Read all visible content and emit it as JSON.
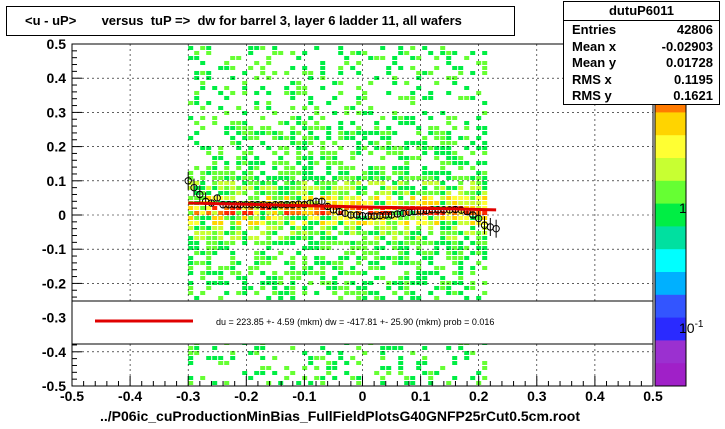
{
  "title": "<u - uP>       versus  tuP =>  dw for barrel 3, layer 6 ladder 11, all wafers",
  "footer": "../P06ic_cuProductionMinBias_FullFieldPlotsG40GNFP25rCut0.5cm.root",
  "stats": {
    "name": "dutuP6011",
    "rows": [
      {
        "label": "Entries",
        "value": "42806"
      },
      {
        "label": "Mean x",
        "value": "-0.02903"
      },
      {
        "label": "Mean y",
        "value": "0.01728"
      },
      {
        "label": "RMS x",
        "value": "0.1195"
      },
      {
        "label": "RMS y",
        "value": "0.1621"
      }
    ]
  },
  "legend": {
    "text": "du =  223.85 +-  4.59 (mkm) dw = -417.81 +- 25.90 (mkm) prob = 0.016",
    "line_color": "#e00000"
  },
  "colorbar": {
    "labels": [
      "1",
      "10-1"
    ],
    "colors": [
      "#d4145a",
      "#ff2a00",
      "#ff7a00",
      "#ffd400",
      "#ffff33",
      "#c8ff32",
      "#66ff33",
      "#00ee44",
      "#00e0a0",
      "#00ffff",
      "#00b0ff",
      "#3355ff",
      "#2a2aff",
      "#9b30d0",
      "#a020c8"
    ]
  },
  "chart_data": {
    "type": "heatmap",
    "title": "<u - uP>       versus  tuP =>  dw for barrel 3, layer 6 ladder 11, all wafers",
    "xlabel": "../P06ic_cuProductionMinBias_FullFieldPlotsG40GNFP25rCut0.5cm.root",
    "ylabel": "",
    "xlim": [
      -0.5,
      0.5
    ],
    "ylim": [
      -0.5,
      0.5
    ],
    "x_ticks": [
      "-0.5",
      "-0.4",
      "-0.3",
      "-0.2",
      "-0.1",
      "0",
      "0.1",
      "0.2",
      "0.3",
      "0.4",
      "0.5"
    ],
    "y_ticks": [
      "-0.5",
      "-0.4",
      "-0.3",
      "-0.2",
      "-0.1",
      "0",
      "0.1",
      "0.2",
      "0.3",
      "0.4",
      "0.5"
    ],
    "grid": true,
    "density_x_range": [
      -0.3,
      0.21
    ],
    "profile_points": {
      "x": [
        -0.3,
        -0.29,
        -0.28,
        -0.27,
        -0.26,
        -0.25,
        -0.24,
        -0.23,
        -0.22,
        -0.21,
        -0.2,
        -0.19,
        -0.18,
        -0.17,
        -0.16,
        -0.15,
        -0.14,
        -0.13,
        -0.12,
        -0.11,
        -0.1,
        -0.09,
        -0.08,
        -0.07,
        -0.06,
        -0.05,
        -0.04,
        -0.03,
        -0.02,
        -0.01,
        0.0,
        0.01,
        0.02,
        0.03,
        0.04,
        0.05,
        0.06,
        0.07,
        0.08,
        0.09,
        0.1,
        0.11,
        0.12,
        0.13,
        0.14,
        0.15,
        0.16,
        0.17,
        0.18,
        0.19,
        0.2,
        0.21,
        0.22,
        0.23
      ],
      "y": [
        0.1,
        0.08,
        0.06,
        0.04,
        0.035,
        0.05,
        0.03,
        0.03,
        0.03,
        0.03,
        0.03,
        0.03,
        0.03,
        0.03,
        0.028,
        0.03,
        0.03,
        0.03,
        0.03,
        0.032,
        0.03,
        0.035,
        0.04,
        0.04,
        0.025,
        0.015,
        0.01,
        0.005,
        0.0,
        0.0,
        -0.002,
        -0.003,
        -0.003,
        -0.002,
        0.0,
        0.0,
        0.003,
        0.005,
        0.008,
        0.01,
        0.012,
        0.013,
        0.015,
        0.015,
        0.015,
        0.015,
        0.016,
        0.014,
        0.01,
        0.0,
        -0.01,
        -0.03,
        -0.035,
        -0.04
      ]
    },
    "fit_line": {
      "x": [
        -0.3,
        0.23
      ],
      "y": [
        0.035,
        0.015
      ],
      "color": "#e00000"
    }
  }
}
